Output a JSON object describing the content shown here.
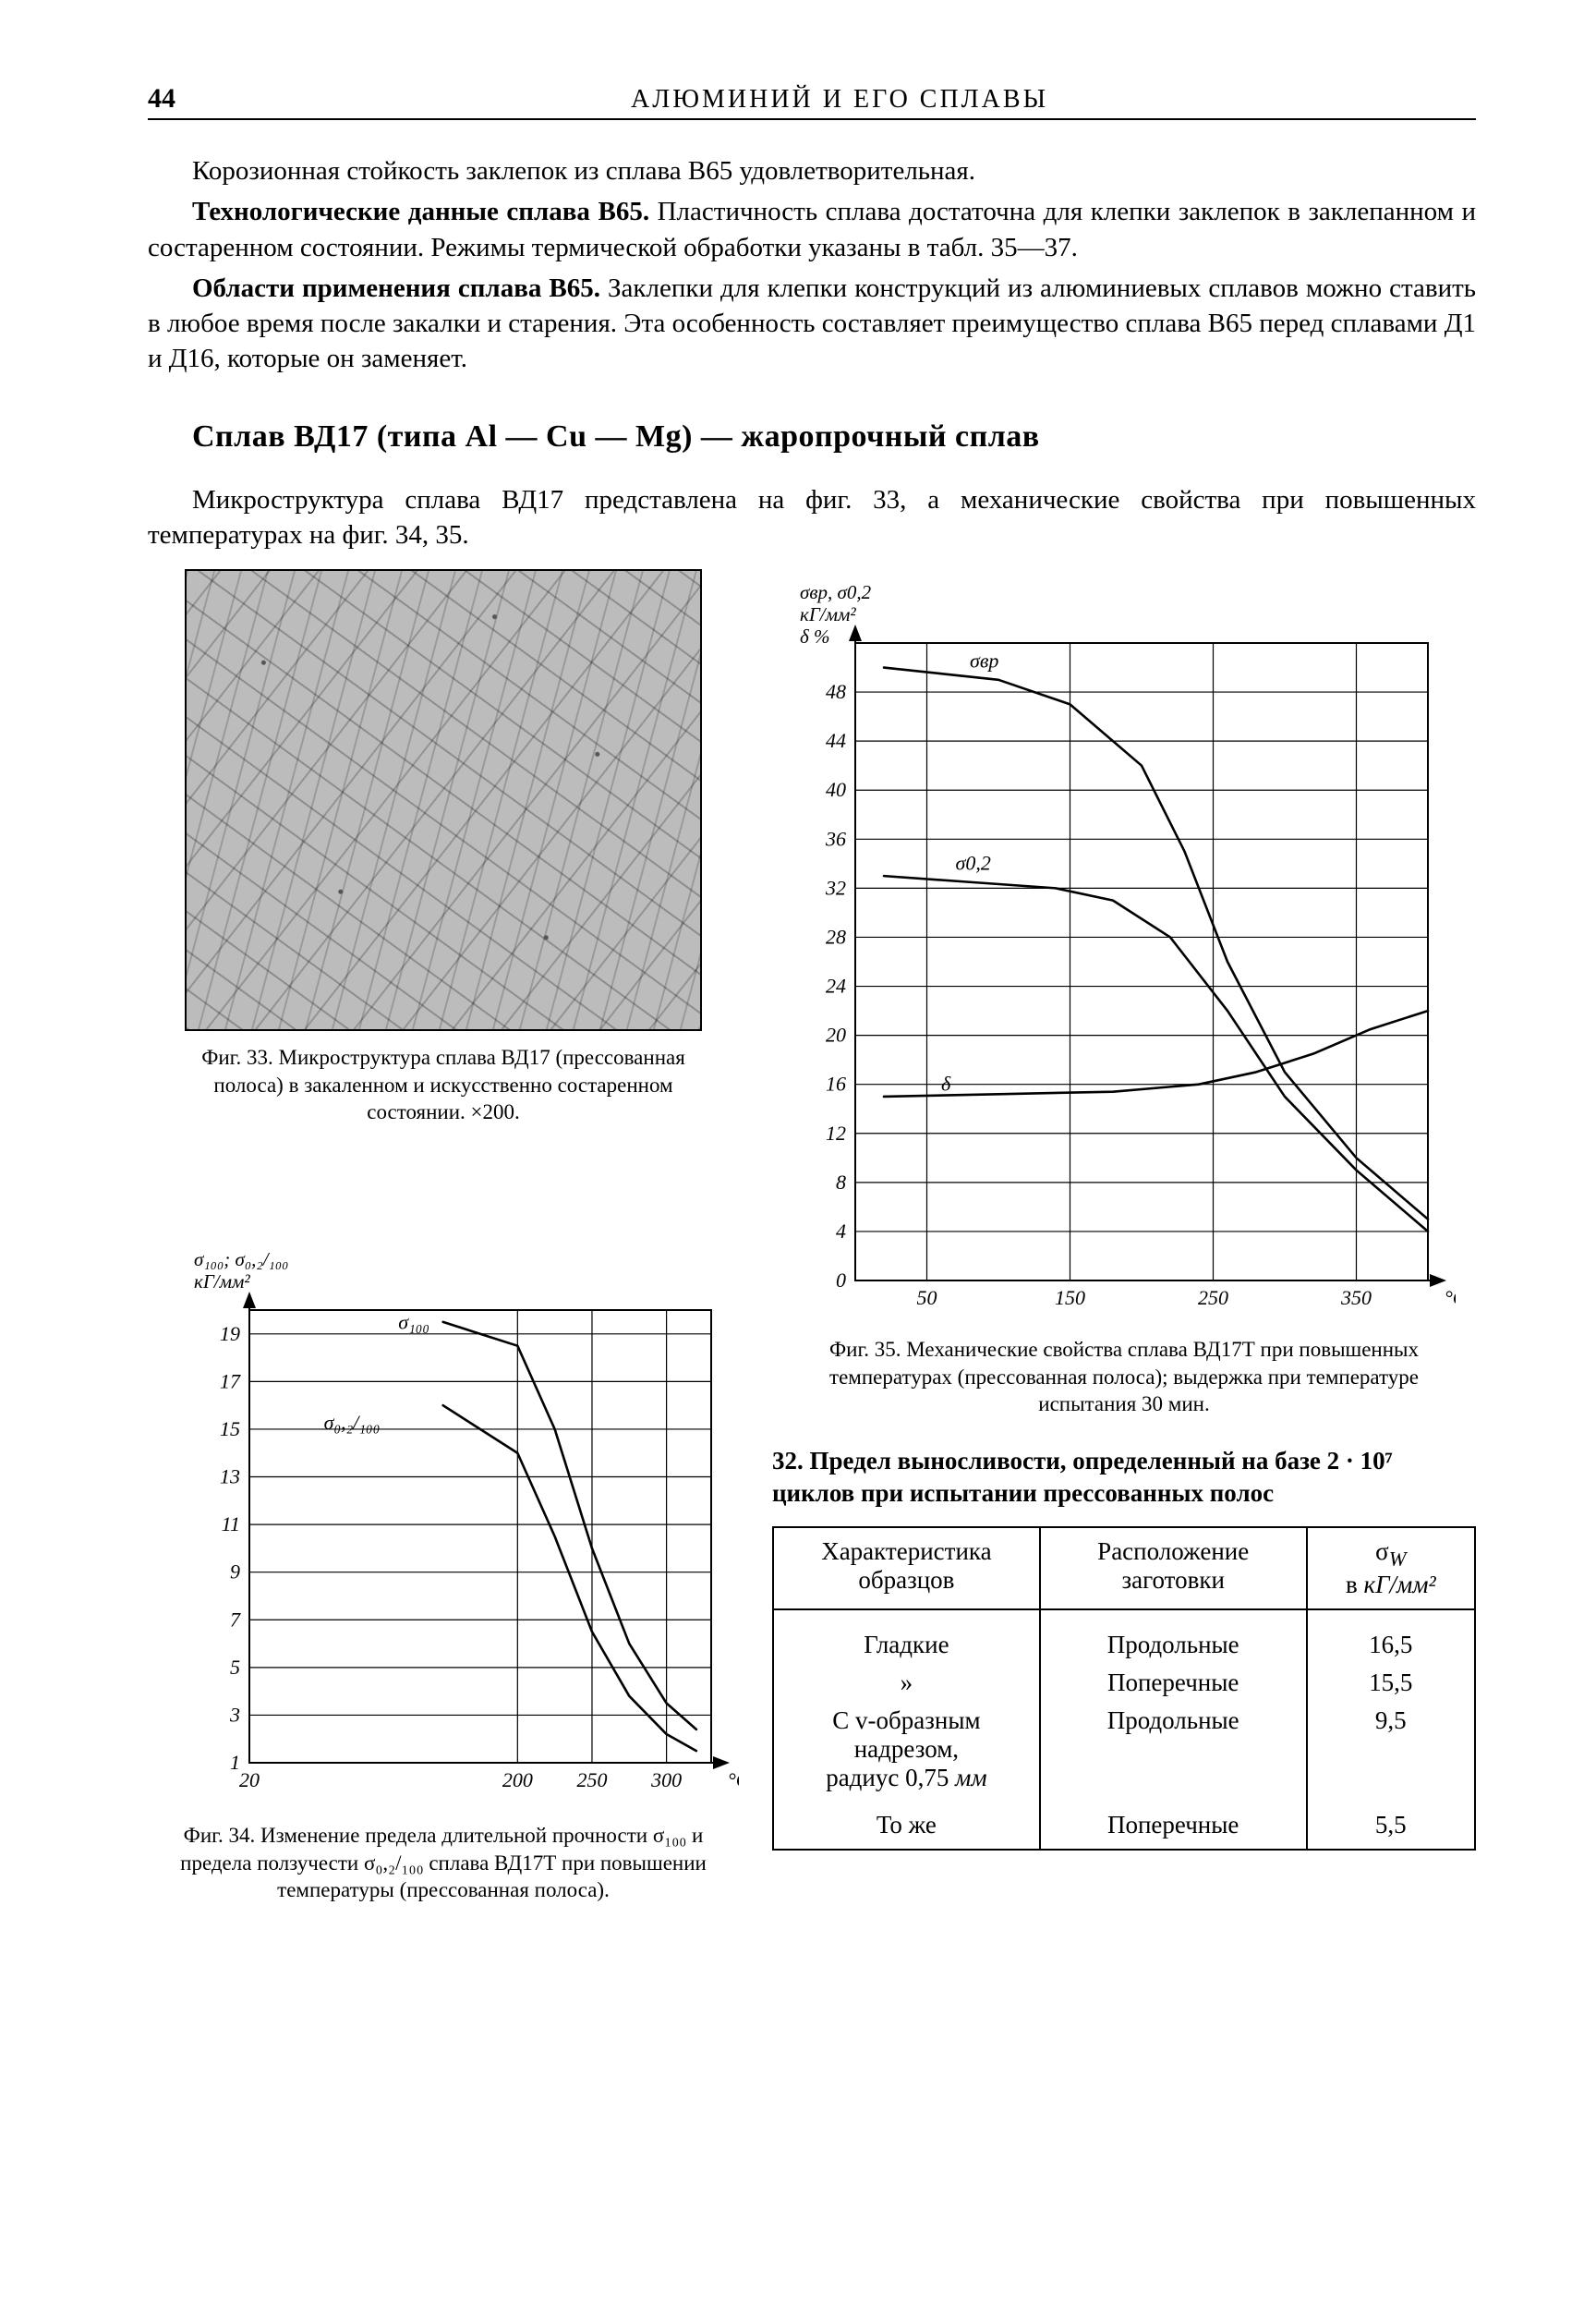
{
  "page_number": "44",
  "running_head": "АЛЮМИНИЙ И ЕГО СПЛАВЫ",
  "para1": "Корозионная стойкость заклепок из сплава В65 удовлетворительная.",
  "para2_lead": "Технологические данные сплава В65.",
  "para2_rest": " Пластичность сплава достаточна для клепки заклепок в заклепанном и состаренном состоянии. Режимы термической обработки указаны в табл. 35—37.",
  "para3_lead": "Области применения сплава В65.",
  "para3_rest": " Заклепки для клепки конструкций из алюминиевых сплавов можно ставить в любое время после закалки и старения. Эта особенность составляет преимущество сплава В65 перед сплавами Д1 и Д16, которые он заменяет.",
  "section_title": "Сплав ВД17 (типа Al — Cu — Mg) — жаропрочный сплав",
  "para4": "Микроструктура сплава ВД17 представлена на фиг. 33, а механические свойства при повышенных температурах на фиг. 34, 35.",
  "fig33_caption": "Фиг. 33. Микроструктура сплава ВД17 (прессованная полоса) в закаленном и искусственно состаренном состоянии. ×200.",
  "fig34_caption": "Фиг. 34. Изменение предела длительной прочности σ₁₀₀ и предела ползучести σ₀,₂/₁₀₀ сплава ВД17Т при повышении температуры (прессованная полоса).",
  "fig35_caption": "Фиг. 35. Механические свойства сплава ВД17Т при повышенных температурах (прессованная полоса); выдержка при температуре испытания 30 мин.",
  "fig35": {
    "type": "line",
    "y_axis_label": "σвр, σ0,2\nкГ/мм²\nδ %",
    "x_axis_label": "°C",
    "x_ticks": [
      50,
      150,
      250,
      350
    ],
    "y_ticks": [
      0,
      4,
      8,
      12,
      16,
      20,
      24,
      28,
      32,
      36,
      40,
      44,
      48
    ],
    "xlim": [
      0,
      400
    ],
    "ylim": [
      0,
      52
    ],
    "grid_color": "#000000",
    "background_color": "#ffffff",
    "line_width": 2.6,
    "series": [
      {
        "name": "σвр",
        "label_x": 80,
        "label_y": 50,
        "points": [
          [
            20,
            50
          ],
          [
            60,
            49.5
          ],
          [
            100,
            49
          ],
          [
            150,
            47
          ],
          [
            200,
            42
          ],
          [
            230,
            35
          ],
          [
            260,
            26
          ],
          [
            300,
            17
          ],
          [
            350,
            10
          ],
          [
            400,
            5
          ]
        ]
      },
      {
        "name": "σ0,2",
        "label_x": 70,
        "label_y": 33.5,
        "points": [
          [
            20,
            33
          ],
          [
            80,
            32.5
          ],
          [
            140,
            32
          ],
          [
            180,
            31
          ],
          [
            220,
            28
          ],
          [
            260,
            22
          ],
          [
            300,
            15
          ],
          [
            350,
            9
          ],
          [
            400,
            4
          ]
        ]
      },
      {
        "name": "δ",
        "label_x": 60,
        "label_y": 15.5,
        "points": [
          [
            20,
            15
          ],
          [
            100,
            15.2
          ],
          [
            180,
            15.4
          ],
          [
            240,
            16
          ],
          [
            280,
            17
          ],
          [
            320,
            18.5
          ],
          [
            360,
            20.5
          ],
          [
            400,
            22
          ]
        ]
      }
    ]
  },
  "fig34": {
    "type": "line",
    "y_axis_label": "σ₁₀₀; σ₀,₂/₁₀₀\nкГ/мм²",
    "x_axis_label": "°C",
    "x_ticks": [
      20,
      200,
      250,
      300
    ],
    "y_ticks": [
      1,
      3,
      5,
      7,
      9,
      11,
      13,
      15,
      17,
      19
    ],
    "xlim": [
      20,
      330
    ],
    "ylim": [
      1,
      20
    ],
    "grid_color": "#000000",
    "background_color": "#ffffff",
    "line_width": 2.6,
    "series": [
      {
        "name": "σ₁₀₀",
        "label_x": 120,
        "label_y": 19.2,
        "points": [
          [
            150,
            19.5
          ],
          [
            200,
            18.5
          ],
          [
            225,
            15
          ],
          [
            250,
            10
          ],
          [
            275,
            6
          ],
          [
            300,
            3.5
          ],
          [
            320,
            2.4
          ]
        ]
      },
      {
        "name": "σ₀,₂/₁₀₀",
        "label_x": 70,
        "label_y": 15,
        "points": [
          [
            150,
            16
          ],
          [
            200,
            14
          ],
          [
            225,
            10.5
          ],
          [
            250,
            6.5
          ],
          [
            275,
            3.8
          ],
          [
            300,
            2.2
          ],
          [
            320,
            1.5
          ]
        ]
      }
    ]
  },
  "table32": {
    "title": "32. Предел выносливости, определенный на базе 2 · 10⁷ циклов при испытании прессованных полос",
    "columns": [
      "Характеристика образцов",
      "Расположение заготовки",
      "σW\nв кГ/мм²"
    ],
    "rows": [
      [
        "Гладкие",
        "Продольные",
        "16,5"
      ],
      [
        "»",
        "Поперечные",
        "15,5"
      ],
      [
        "С v-образным надрезом, радиус 0,75 мм",
        "Продольные",
        "9,5"
      ],
      [
        "То же",
        "Поперечные",
        "5,5"
      ]
    ]
  }
}
